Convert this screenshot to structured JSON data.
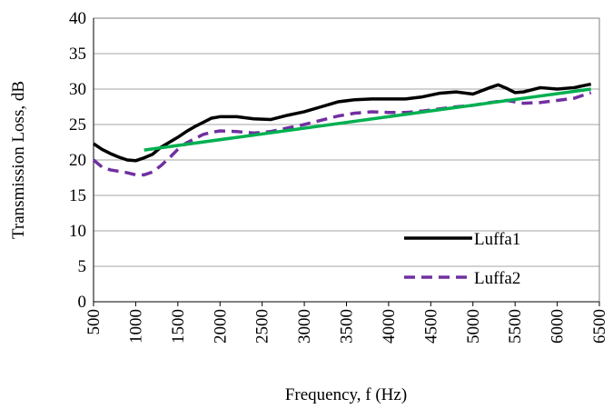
{
  "chart_data": {
    "type": "line",
    "y_label": "Transmission Loss, dB",
    "x_label": "Frequency, f (Hz)",
    "xlim": [
      500,
      6500
    ],
    "xticks": [
      500,
      1000,
      1500,
      2000,
      2500,
      3000,
      3500,
      4000,
      4500,
      5000,
      5500,
      6000,
      6500
    ],
    "ylim": [
      0,
      40
    ],
    "yticks": [
      0,
      5,
      10,
      15,
      20,
      25,
      30,
      35,
      40
    ],
    "grid": true,
    "legend": "lower right",
    "series": [
      {
        "name": "Luffa1",
        "color": "#000000",
        "dash": "solid",
        "x": [
          500,
          600,
          700,
          800,
          900,
          1000,
          1100,
          1200,
          1300,
          1400,
          1500,
          1600,
          1700,
          1800,
          1900,
          2000,
          2200,
          2400,
          2600,
          2800,
          3000,
          3200,
          3400,
          3600,
          3800,
          4000,
          4200,
          4400,
          4600,
          4800,
          5000,
          5200,
          5300,
          5400,
          5500,
          5600,
          5800,
          6000,
          6200,
          6400
        ],
        "values": [
          22.3,
          21.5,
          20.9,
          20.4,
          20.0,
          19.9,
          20.3,
          20.8,
          21.8,
          22.5,
          23.2,
          24.0,
          24.7,
          25.3,
          25.9,
          26.1,
          26.1,
          25.8,
          25.7,
          26.3,
          26.8,
          27.5,
          28.2,
          28.5,
          28.6,
          28.6,
          28.6,
          28.9,
          29.4,
          29.6,
          29.3,
          30.2,
          30.6,
          30.1,
          29.5,
          29.6,
          30.2,
          30.0,
          30.2,
          30.7
        ]
      },
      {
        "name": "Luffa2",
        "color": "#7030a0",
        "dash": "dashed",
        "x": [
          500,
          600,
          700,
          800,
          900,
          1000,
          1100,
          1200,
          1300,
          1400,
          1500,
          1600,
          1700,
          1800,
          1900,
          2000,
          2200,
          2400,
          2600,
          2800,
          3000,
          3200,
          3400,
          3600,
          3800,
          4000,
          4200,
          4400,
          4600,
          4800,
          5000,
          5200,
          5400,
          5600,
          5800,
          6000,
          6200,
          6400
        ],
        "values": [
          20.0,
          19.0,
          18.6,
          18.4,
          18.2,
          17.9,
          17.9,
          18.3,
          19.2,
          20.3,
          21.5,
          22.4,
          23.0,
          23.6,
          23.9,
          24.1,
          24.0,
          23.8,
          24.0,
          24.5,
          25.0,
          25.6,
          26.2,
          26.6,
          26.8,
          26.7,
          26.7,
          26.9,
          27.2,
          27.5,
          27.7,
          28.1,
          28.4,
          28.0,
          28.1,
          28.4,
          28.7,
          29.5
        ]
      },
      {
        "color": "#00b050",
        "dash": "solid",
        "x": [
          1100,
          6400
        ],
        "values": [
          21.4,
          30.0
        ]
      }
    ]
  }
}
